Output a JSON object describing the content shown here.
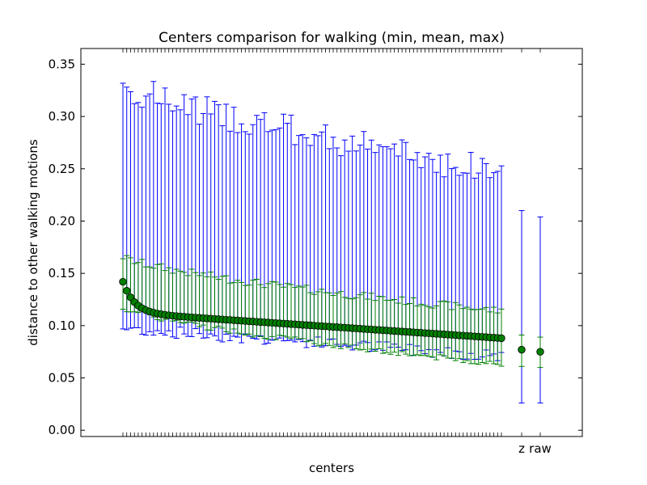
{
  "chart_data": {
    "type": "scatter",
    "title": "Centers comparison for walking (min, mean, max)",
    "xlabel": "centers",
    "ylabel": "distance to other walking motions",
    "ylim": [
      -0.006,
      0.365
    ],
    "yticks": [
      "0.00",
      "0.05",
      "0.10",
      "0.15",
      "0.20",
      "0.25",
      "0.30",
      "0.35"
    ],
    "ytick_values": [
      0.0,
      0.05,
      0.1,
      0.15,
      0.2,
      0.25,
      0.3,
      0.35
    ],
    "n_centers": 100,
    "extra_labels": [
      "z",
      "raw"
    ],
    "grid": false,
    "colors": {
      "blue_series": "#0000ff",
      "green_series": "#008000",
      "marker_fill": "#008000",
      "marker_edge": "#000000",
      "axes": "#000000"
    },
    "series": [
      {
        "name": "",
        "description_role": "range of mean distance (blue error bars)",
        "mean_start": 0.142,
        "mean_end": 0.088,
        "min_start": 0.097,
        "min_end": 0.071,
        "max_start": 0.33,
        "max_end": 0.247
      },
      {
        "name": "",
        "description_role": "range around centers (green error bars)",
        "min_start": 0.118,
        "min_end": 0.063,
        "max_start": 0.166,
        "max_end": 0.114
      }
    ],
    "extra_points": [
      {
        "label": "z",
        "mean": 0.077,
        "min": 0.026,
        "max": 0.21,
        "inner_min": 0.061,
        "inner_max": 0.091
      },
      {
        "label": "raw",
        "mean": 0.075,
        "min": 0.026,
        "max": 0.204,
        "inner_min": 0.06,
        "inner_max": 0.089
      }
    ]
  }
}
